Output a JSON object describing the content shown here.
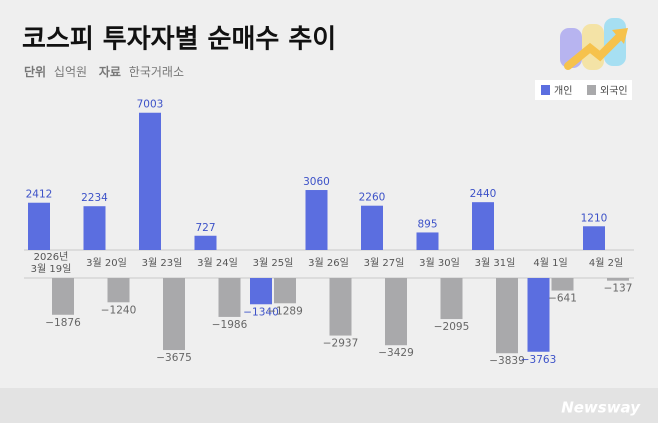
{
  "chart_data": {
    "type": "bar",
    "title": "코스피 투자자별 순매수 추이",
    "unit_label": "단위",
    "unit": "십억원",
    "source_label": "자료",
    "source": "한국거래소",
    "categories": [
      "2026년\n3월 19일",
      "3월 20일",
      "3월 23일",
      "3월 24일",
      "3월 25일",
      "3월 26일",
      "3월 27일",
      "3월 30일",
      "3월 31일",
      "4월 1일",
      "4월 2일"
    ],
    "series": [
      {
        "name": "개인",
        "color": "#5b6ee0",
        "label_color": "#3d52c8",
        "values": [
          2412,
          2234,
          7003,
          727,
          -1340,
          3060,
          2260,
          895,
          2440,
          -3763,
          1210
        ],
        "value_labels": [
          "2412",
          "2234",
          "7003",
          "727",
          "−1340",
          "3060",
          "2260",
          "895",
          "2440",
          "−3763",
          "1210"
        ]
      },
      {
        "name": "외국인",
        "color": "#a9a9ab",
        "label_color": "#666666",
        "values": [
          -1876,
          -1240,
          -3675,
          -1986,
          -1289,
          -2937,
          -3429,
          -2095,
          -3839,
          -641,
          -137
        ],
        "value_labels": [
          "−1876",
          "−1240",
          "−3675",
          "−1986",
          "−1289",
          "−2937",
          "−3429",
          "−2095",
          "−3839",
          "−641",
          "−137"
        ]
      }
    ],
    "legend": "top-right",
    "watermark": "Newsway"
  }
}
